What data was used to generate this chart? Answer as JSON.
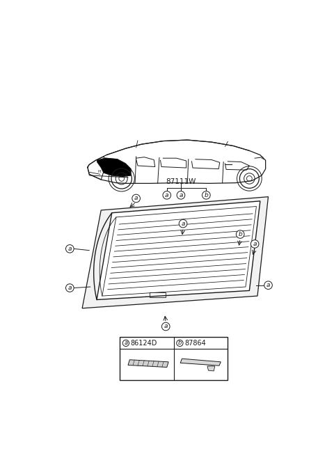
{
  "bg_color": "#ffffff",
  "line_color": "#1a1a1a",
  "part_number_main": "87111W",
  "part_a_code": "86124D",
  "part_b_code": "87864"
}
